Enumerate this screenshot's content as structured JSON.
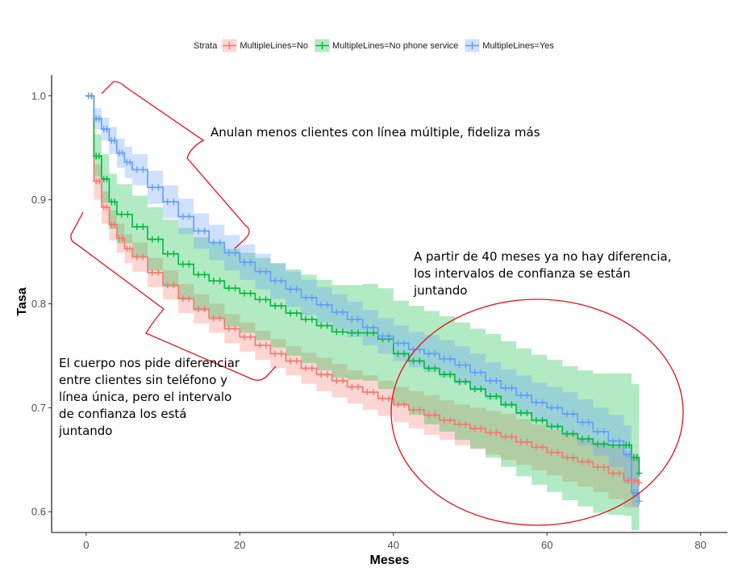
{
  "legend": {
    "title": "Strata",
    "items": [
      {
        "label": "MultipleLines=No",
        "color": "#F8766D"
      },
      {
        "label": "MultipleLines=No phone service",
        "color": "#00BA38"
      },
      {
        "label": "MultipleLines=Yes",
        "color": "#619CFF"
      }
    ]
  },
  "annotations": {
    "top": "Anulan menos clientes con línea múltiple, fideliza más",
    "right": [
      "A partir de 40 meses ya no hay diferencia,",
      "los intervalos de confianza se están",
      "juntando"
    ],
    "left": [
      "El cuerpo nos pide diferenciar",
      "entre clientes sin teléfono y",
      "línea única, pero el intervalo",
      "de confianza los está",
      "juntando"
    ]
  },
  "chart_data": {
    "type": "line",
    "xlabel": "Meses",
    "ylabel": "Tasa",
    "xlim": [
      -4.5,
      83.5
    ],
    "ylim": [
      0.58,
      1.02
    ],
    "xticks": [
      0,
      20,
      40,
      60,
      80
    ],
    "yticks": [
      0.6,
      0.7,
      0.8,
      0.9,
      1.0
    ],
    "grid": false,
    "legend_position": "top",
    "series": [
      {
        "name": "MultipleLines=No",
        "color": "#F8766D",
        "x": [
          0,
          1,
          2,
          3,
          4,
          5,
          6,
          8,
          10,
          12,
          14,
          16,
          18,
          20,
          22,
          24,
          26,
          28,
          30,
          32,
          34,
          36,
          38,
          40,
          42,
          44,
          46,
          48,
          50,
          52,
          54,
          56,
          58,
          60,
          62,
          64,
          66,
          68,
          70,
          72
        ],
        "y": [
          1.0,
          0.918,
          0.893,
          0.876,
          0.863,
          0.853,
          0.845,
          0.83,
          0.818,
          0.805,
          0.795,
          0.786,
          0.776,
          0.768,
          0.76,
          0.752,
          0.745,
          0.738,
          0.732,
          0.726,
          0.72,
          0.715,
          0.709,
          0.703,
          0.698,
          0.693,
          0.688,
          0.684,
          0.68,
          0.676,
          0.672,
          0.667,
          0.662,
          0.657,
          0.652,
          0.648,
          0.643,
          0.637,
          0.63,
          0.628
        ],
        "ci_low": [
          1.0,
          0.9,
          0.877,
          0.861,
          0.849,
          0.839,
          0.831,
          0.816,
          0.804,
          0.791,
          0.781,
          0.772,
          0.762,
          0.754,
          0.746,
          0.738,
          0.731,
          0.723,
          0.716,
          0.71,
          0.704,
          0.698,
          0.692,
          0.686,
          0.68,
          0.674,
          0.669,
          0.664,
          0.66,
          0.655,
          0.65,
          0.645,
          0.64,
          0.635,
          0.629,
          0.624,
          0.619,
          0.612,
          0.604,
          0.598
        ],
        "ci_high": [
          1.0,
          0.934,
          0.908,
          0.89,
          0.877,
          0.867,
          0.859,
          0.844,
          0.832,
          0.819,
          0.809,
          0.8,
          0.79,
          0.782,
          0.774,
          0.766,
          0.759,
          0.753,
          0.748,
          0.742,
          0.736,
          0.731,
          0.726,
          0.72,
          0.716,
          0.712,
          0.707,
          0.703,
          0.7,
          0.697,
          0.694,
          0.689,
          0.684,
          0.679,
          0.675,
          0.671,
          0.667,
          0.662,
          0.656,
          0.658
        ]
      },
      {
        "name": "MultipleLines=No phone service",
        "color": "#00BA38",
        "x": [
          0,
          1,
          2,
          3,
          4,
          6,
          8,
          10,
          12,
          14,
          16,
          18,
          20,
          22,
          24,
          26,
          28,
          30,
          32,
          34,
          36,
          38,
          40,
          42,
          44,
          46,
          48,
          50,
          52,
          54,
          56,
          58,
          60,
          62,
          64,
          66,
          68,
          70,
          71,
          72
        ],
        "y": [
          1.0,
          0.942,
          0.92,
          0.898,
          0.886,
          0.874,
          0.862,
          0.848,
          0.838,
          0.828,
          0.822,
          0.815,
          0.81,
          0.804,
          0.798,
          0.791,
          0.785,
          0.779,
          0.773,
          0.772,
          0.772,
          0.766,
          0.752,
          0.745,
          0.738,
          0.732,
          0.725,
          0.718,
          0.711,
          0.703,
          0.695,
          0.688,
          0.682,
          0.675,
          0.67,
          0.665,
          0.664,
          0.664,
          0.652,
          0.637
        ],
        "ci_low": [
          1.0,
          0.922,
          0.897,
          0.872,
          0.858,
          0.845,
          0.832,
          0.816,
          0.804,
          0.793,
          0.786,
          0.778,
          0.772,
          0.765,
          0.758,
          0.75,
          0.743,
          0.736,
          0.729,
          0.727,
          0.726,
          0.718,
          0.702,
          0.693,
          0.684,
          0.677,
          0.669,
          0.661,
          0.652,
          0.643,
          0.634,
          0.626,
          0.619,
          0.611,
          0.605,
          0.599,
          0.597,
          0.596,
          0.582,
          0.565
        ],
        "ci_high": [
          1.0,
          0.963,
          0.944,
          0.925,
          0.915,
          0.904,
          0.893,
          0.881,
          0.873,
          0.864,
          0.859,
          0.853,
          0.849,
          0.844,
          0.839,
          0.833,
          0.828,
          0.823,
          0.818,
          0.818,
          0.819,
          0.815,
          0.803,
          0.798,
          0.793,
          0.788,
          0.782,
          0.776,
          0.771,
          0.764,
          0.757,
          0.751,
          0.746,
          0.74,
          0.736,
          0.733,
          0.733,
          0.733,
          0.723,
          0.71
        ]
      },
      {
        "name": "MultipleLines=Yes",
        "color": "#619CFF",
        "x": [
          0,
          1,
          2,
          3,
          4,
          5,
          6,
          8,
          10,
          12,
          14,
          16,
          18,
          20,
          22,
          24,
          26,
          28,
          30,
          32,
          34,
          36,
          38,
          40,
          42,
          44,
          46,
          48,
          50,
          52,
          54,
          56,
          58,
          60,
          62,
          64,
          66,
          68,
          70,
          71,
          72
        ],
        "y": [
          1.0,
          0.978,
          0.968,
          0.957,
          0.945,
          0.936,
          0.929,
          0.912,
          0.898,
          0.884,
          0.87,
          0.859,
          0.849,
          0.84,
          0.831,
          0.822,
          0.814,
          0.806,
          0.799,
          0.792,
          0.785,
          0.777,
          0.769,
          0.762,
          0.756,
          0.752,
          0.747,
          0.741,
          0.734,
          0.726,
          0.719,
          0.712,
          0.705,
          0.7,
          0.694,
          0.686,
          0.677,
          0.668,
          0.655,
          0.618,
          0.61
        ],
        "ci_low": [
          1.0,
          0.968,
          0.957,
          0.944,
          0.931,
          0.921,
          0.914,
          0.896,
          0.882,
          0.867,
          0.853,
          0.842,
          0.832,
          0.823,
          0.814,
          0.805,
          0.797,
          0.789,
          0.782,
          0.775,
          0.768,
          0.76,
          0.752,
          0.745,
          0.739,
          0.734,
          0.729,
          0.723,
          0.716,
          0.708,
          0.701,
          0.693,
          0.686,
          0.68,
          0.673,
          0.664,
          0.654,
          0.643,
          0.627,
          0.605,
          0.6
        ],
        "ci_high": [
          1.0,
          0.988,
          0.979,
          0.97,
          0.959,
          0.951,
          0.944,
          0.928,
          0.914,
          0.901,
          0.887,
          0.876,
          0.866,
          0.857,
          0.848,
          0.839,
          0.831,
          0.823,
          0.816,
          0.809,
          0.802,
          0.794,
          0.786,
          0.779,
          0.773,
          0.77,
          0.765,
          0.759,
          0.752,
          0.744,
          0.737,
          0.731,
          0.724,
          0.72,
          0.715,
          0.708,
          0.7,
          0.693,
          0.683,
          0.651,
          0.64
        ]
      }
    ]
  }
}
